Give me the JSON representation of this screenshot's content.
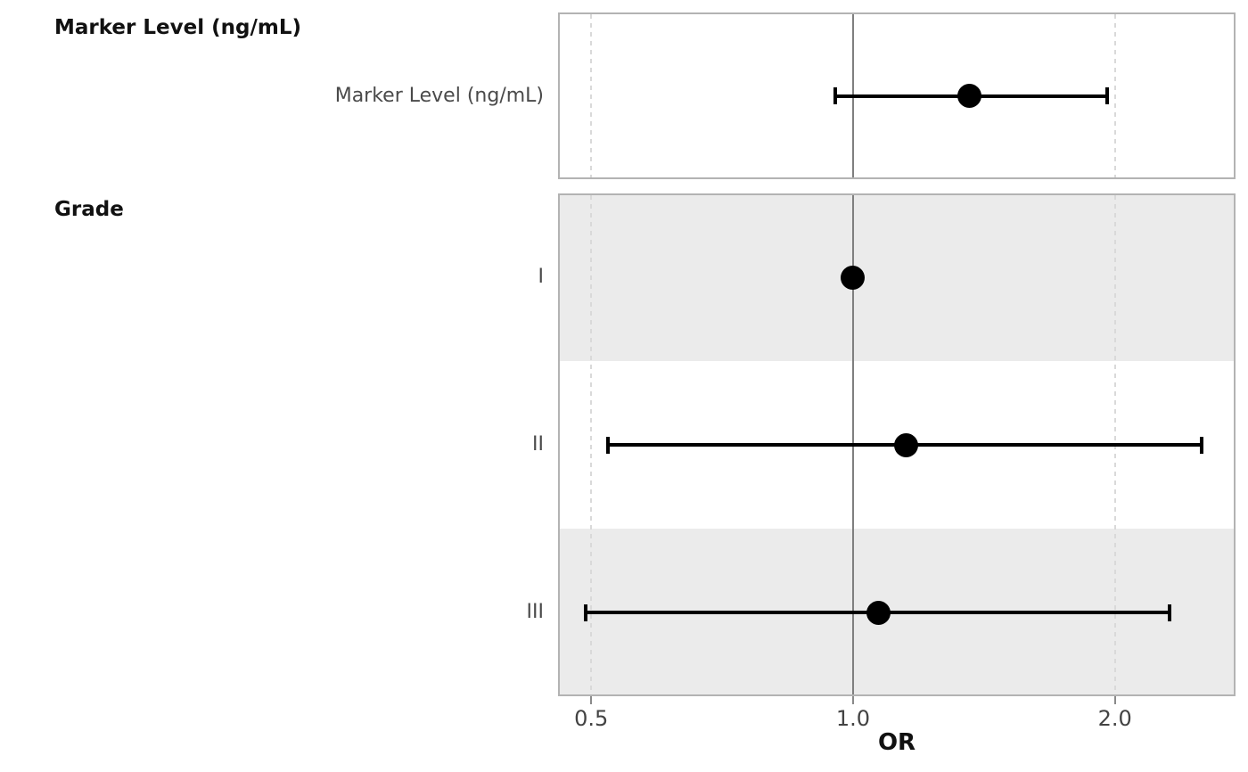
{
  "chart_data": {
    "type": "forest",
    "title": "",
    "xlabel": "OR",
    "x_scale": "log",
    "xlim": [
      0.458,
      2.752
    ],
    "x_ticks": [
      {
        "value": 0.5,
        "label": "0.5"
      },
      {
        "value": 1.0,
        "label": "1.0"
      },
      {
        "value": 2.0,
        "label": "2.0"
      }
    ],
    "reference_line": 1.0,
    "grid": "vertical-dashed-at-ticks",
    "legend": null,
    "groups": [
      {
        "header": "Marker Level (ng/mL)",
        "rows": [
          {
            "label": "Marker Level (ng/mL)",
            "or": 1.36,
            "ci_low": 0.95,
            "ci_high": 1.97,
            "reference": false
          }
        ]
      },
      {
        "header": "Grade",
        "rows": [
          {
            "label": "I",
            "or": 1.0,
            "ci_low": null,
            "ci_high": null,
            "reference": true
          },
          {
            "label": "II",
            "or": 1.15,
            "ci_low": 0.52,
            "ci_high": 2.53,
            "reference": false
          },
          {
            "label": "III",
            "or": 1.07,
            "ci_low": 0.49,
            "ci_high": 2.32,
            "reference": false
          }
        ]
      }
    ],
    "colors": {
      "point": "#000000",
      "error_bar": "#000000",
      "stripe": "#ebebeb",
      "panel_bg": "#ffffff",
      "panel_border": "#b3b3b3",
      "reference_line": "#7f7f7f",
      "grid_dashed": "#d9d9d9",
      "tick": "#8a8a8a",
      "text_muted": "#4a4a4a",
      "text_strong": "#111111"
    }
  }
}
